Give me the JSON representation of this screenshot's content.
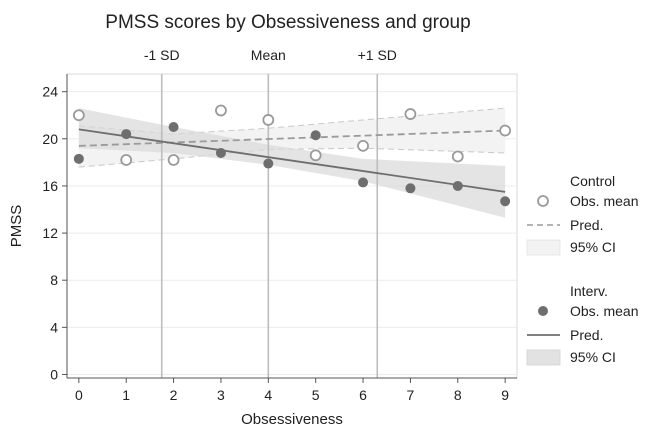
{
  "chart_data": {
    "type": "scatter",
    "title": "PMSS scores by Obsessiveness and group",
    "xlabel": "Obsessiveness",
    "ylabel": "PMSS",
    "xlim": [
      -0.25,
      9.25
    ],
    "ylim": [
      -0.3,
      25.5
    ],
    "xticks": [
      "0",
      "1",
      "2",
      "3",
      "4",
      "5",
      "6",
      "7",
      "8",
      "9"
    ],
    "yticks": [
      "0",
      "4",
      "8",
      "12",
      "16",
      "20",
      "24"
    ],
    "reference_lines": [
      {
        "label": "-1 SD",
        "x": 1.75
      },
      {
        "label": "Mean",
        "x": 4.0
      },
      {
        "label": "+1 SD",
        "x": 6.3
      }
    ],
    "legend": {
      "groups": [
        {
          "title": "Control",
          "obs_label": "Obs. mean",
          "pred_label": "Pred.",
          "ci_label": "95% CI"
        },
        {
          "title": "Interv.",
          "obs_label": "Obs. mean",
          "pred_label": "Pred.",
          "ci_label": "95% CI"
        }
      ]
    },
    "series": [
      {
        "name": "Control",
        "marker": "hollow-circle",
        "color": "#9a9a9a",
        "obs_x": [
          0,
          1,
          2,
          3,
          4,
          5,
          6,
          7,
          8,
          9
        ],
        "obs_y": [
          22.0,
          18.2,
          18.2,
          22.4,
          21.6,
          18.6,
          19.4,
          22.1,
          18.5,
          20.7
        ],
        "pred_start": [
          0,
          19.4
        ],
        "pred_end": [
          9,
          20.7
        ],
        "ci_lower": [
          [
            0,
            17.6
          ],
          [
            2,
            18.3
          ],
          [
            4,
            19.1
          ],
          [
            6,
            19.2
          ],
          [
            9,
            18.8
          ]
        ],
        "ci_upper": [
          [
            0,
            21.1
          ],
          [
            2,
            20.4
          ],
          [
            4,
            20.9
          ],
          [
            6,
            21.6
          ],
          [
            9,
            22.6
          ]
        ]
      },
      {
        "name": "Interv.",
        "marker": "filled-circle",
        "color": "#6e6e6e",
        "obs_x": [
          0,
          1,
          2,
          3,
          4,
          5,
          6,
          7,
          8,
          9
        ],
        "obs_y": [
          18.3,
          20.4,
          21.0,
          18.8,
          17.9,
          20.3,
          16.3,
          15.8,
          16.0,
          14.7
        ],
        "pred_start": [
          0,
          20.8
        ],
        "pred_end": [
          9,
          15.5
        ],
        "ci_lower": [
          [
            0,
            19.2
          ],
          [
            2,
            18.8
          ],
          [
            4,
            17.8
          ],
          [
            6,
            16.4
          ],
          [
            9,
            13.3
          ]
        ],
        "ci_upper": [
          [
            0,
            22.6
          ],
          [
            2,
            21.0
          ],
          [
            4,
            19.5
          ],
          [
            6,
            18.3
          ],
          [
            9,
            17.7
          ]
        ]
      }
    ]
  }
}
